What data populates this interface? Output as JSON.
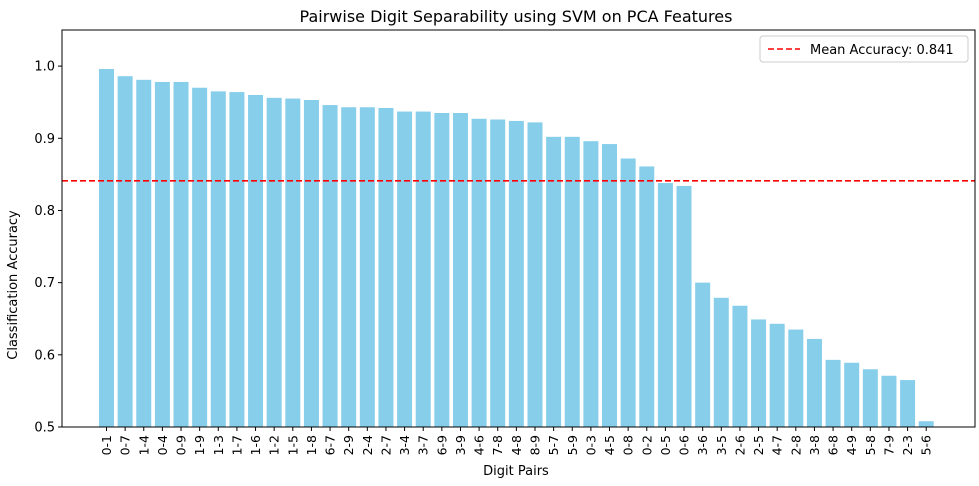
{
  "chart_data": {
    "type": "bar",
    "title": "Pairwise Digit Separability using SVM on PCA Features",
    "xlabel": "Digit Pairs",
    "ylabel": "Classification Accuracy",
    "ylim": [
      0.5,
      1.05
    ],
    "yticks": [
      "0.5",
      "0.6",
      "0.7",
      "0.8",
      "0.9",
      "1.0"
    ],
    "grid": false,
    "legend_position": "top-right",
    "bar_color": "#87CEEB",
    "mean_line": {
      "value": 0.841,
      "label": "Mean Accuracy: 0.841",
      "color": "#FF0000",
      "style": "dashed"
    },
    "categories": [
      "0-1",
      "0-7",
      "1-4",
      "0-4",
      "0-9",
      "1-9",
      "1-3",
      "1-7",
      "1-6",
      "1-2",
      "1-5",
      "1-8",
      "6-7",
      "2-9",
      "2-4",
      "2-7",
      "3-4",
      "3-7",
      "6-9",
      "3-9",
      "4-6",
      "7-8",
      "4-8",
      "8-9",
      "5-7",
      "5-9",
      "0-3",
      "4-5",
      "0-8",
      "0-2",
      "0-5",
      "0-6",
      "3-6",
      "3-5",
      "2-6",
      "2-5",
      "4-7",
      "2-8",
      "3-8",
      "6-8",
      "4-9",
      "5-8",
      "7-9",
      "2-3",
      "5-6"
    ],
    "values": [
      0.996,
      0.986,
      0.981,
      0.978,
      0.978,
      0.97,
      0.965,
      0.964,
      0.96,
      0.956,
      0.955,
      0.953,
      0.946,
      0.943,
      0.943,
      0.942,
      0.937,
      0.937,
      0.935,
      0.935,
      0.927,
      0.926,
      0.924,
      0.922,
      0.902,
      0.902,
      0.896,
      0.892,
      0.872,
      0.861,
      0.838,
      0.834,
      0.7,
      0.679,
      0.668,
      0.649,
      0.643,
      0.635,
      0.622,
      0.593,
      0.589,
      0.58,
      0.571,
      0.565,
      0.508
    ]
  }
}
